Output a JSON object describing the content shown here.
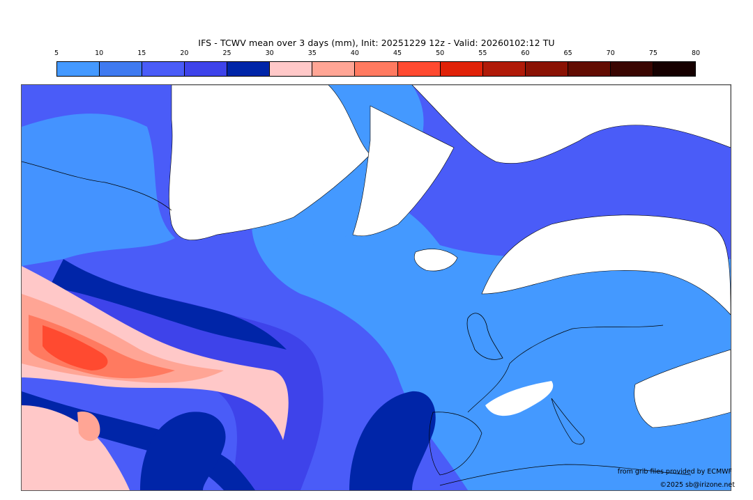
{
  "title": "IFS - TCWV mean over 3 days (mm), Init: 20251229 12z - Valid: 20260102:12 TU",
  "colorbar": {
    "ticks": [
      "5",
      "10",
      "15",
      "20",
      "25",
      "30",
      "35",
      "40",
      "45",
      "50",
      "55",
      "60",
      "65",
      "70",
      "75",
      "80"
    ],
    "colors": [
      "#4499ff",
      "#3f7af0",
      "#4a5cf8",
      "#3e43ea",
      "#0025a8",
      "#ffc8c8",
      "#ffa595",
      "#ff7a60",
      "#ff4a30",
      "#e02208",
      "#b01a08",
      "#8a1204",
      "#620c02",
      "#3a0602",
      "#160000"
    ]
  },
  "map": {
    "region": "North Atlantic, Greenland and Europe",
    "land_color": "#ffffff",
    "coast_color": "#000000"
  },
  "credits": {
    "source": "from grib files provided by ECMWF",
    "copyright": "©2025 sb@irizone.net"
  }
}
